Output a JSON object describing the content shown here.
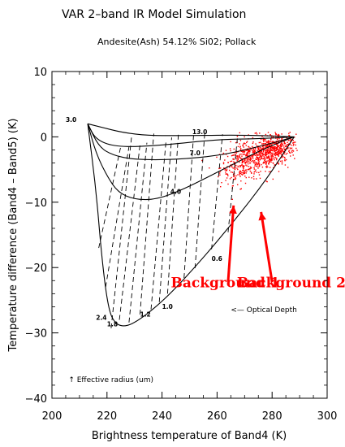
{
  "chart_data": {
    "type": "scatter",
    "title": "VAR 2–band IR Model Simulation",
    "subtitle": "Andesite(Ash) 54.12% Si02; Pollack",
    "xlabel": "Brightness temperature of Band4  (K)",
    "ylabel": "Temperature difference (Band4 – Band5)  (K)",
    "xlim": [
      200,
      300
    ],
    "ylim": [
      -40,
      10
    ],
    "xticks": [
      "200",
      "220",
      "240",
      "260",
      "280",
      "300"
    ],
    "yticks": [
      "10",
      "0",
      "−10",
      "−20",
      "−30",
      "−40"
    ],
    "grid": false,
    "effective_radius_curves": [
      {
        "label": "3.0",
        "points": [
          [
            213,
            2
          ],
          [
            216,
            -0.5
          ],
          [
            224,
            -1.6
          ],
          [
            240,
            -1.3
          ],
          [
            260,
            -0.4
          ],
          [
            275,
            -0.3
          ],
          [
            288,
            0
          ]
        ]
      },
      {
        "label": "7.0",
        "points": [
          [
            213,
            2
          ],
          [
            217,
            -1.5
          ],
          [
            222,
            -2.8
          ],
          [
            230,
            -3.5
          ],
          [
            245,
            -3.5
          ],
          [
            262,
            -2.8
          ],
          [
            278,
            -1.2
          ],
          [
            288,
            0
          ]
        ]
      },
      {
        "label": "4.0",
        "points": [
          [
            213,
            2
          ],
          [
            216,
            -2.5
          ],
          [
            220,
            -6.0
          ],
          [
            224,
            -8.5
          ],
          [
            230,
            -9.6
          ],
          [
            238,
            -9.6
          ],
          [
            248,
            -8.0
          ],
          [
            262,
            -5.0
          ],
          [
            277,
            -1.8
          ],
          [
            288,
            0
          ]
        ]
      },
      {
        "label": "13.0",
        "points": [
          [
            213,
            2
          ],
          [
            230,
            0.2
          ],
          [
            250,
            0.2
          ],
          [
            270,
            0.3
          ],
          [
            288,
            0
          ]
        ]
      },
      {
        "label": "2.4",
        "points": [
          [
            213,
            2
          ],
          [
            216,
            -8
          ],
          [
            218,
            -18
          ],
          [
            220,
            -25
          ],
          [
            222,
            -28.2
          ],
          [
            226,
            -29.2
          ],
          [
            232,
            -28
          ],
          [
            242,
            -24.5
          ],
          [
            254,
            -19
          ],
          [
            266,
            -13
          ],
          [
            278,
            -6.5
          ],
          [
            288,
            0
          ]
        ]
      }
    ],
    "optical_depth_lines": [
      {
        "label": "1.8",
        "points": [
          [
            221.5,
            -29.3
          ],
          [
            229,
            0.3
          ]
        ]
      },
      {
        "label": "1.2",
        "points": [
          [
            232,
            -27.2
          ],
          [
            237,
            0.5
          ]
        ]
      },
      {
        "label": "1.0",
        "points": [
          [
            242,
            -24
          ],
          [
            246,
            0.7
          ]
        ]
      },
      {
        "label": "0.6",
        "points": [
          [
            258,
            -17.2
          ],
          [
            262,
            0.4
          ]
        ]
      },
      {
        "points": [
          [
            217,
            -17
          ],
          [
            225,
            -1.5
          ]
        ]
      },
      {
        "points": [
          [
            219.5,
            -23
          ],
          [
            228,
            -1.5
          ]
        ]
      },
      {
        "points": [
          [
            224.5,
            -28
          ],
          [
            232,
            -1.2
          ]
        ]
      },
      {
        "points": [
          [
            228,
            -28.4
          ],
          [
            234.5,
            -0.9
          ]
        ]
      },
      {
        "points": [
          [
            236,
            -26.4
          ],
          [
            241.5,
            -0.4
          ]
        ]
      },
      {
        "points": [
          [
            239,
            -25.3
          ],
          [
            243.5,
            -0.1
          ]
        ]
      },
      {
        "points": [
          [
            248,
            -21.6
          ],
          [
            251.5,
            0.5
          ]
        ]
      },
      {
        "points": [
          [
            252,
            -20.1
          ],
          [
            255.5,
            0.5
          ]
        ]
      },
      {
        "points": [
          [
            264,
            -14.6
          ],
          [
            267.5,
            0.3
          ]
        ]
      }
    ],
    "background_clusters": [
      {
        "name": "Background 1",
        "center": [
          270,
          -3.5
        ],
        "spread": [
          9,
          3.2
        ],
        "count": 420
      },
      {
        "name": "Background 2",
        "center": [
          280,
          -2.0
        ],
        "spread": [
          8,
          2.2
        ],
        "count": 520
      }
    ],
    "annotations": [
      {
        "text": "Background 1",
        "x": 263,
        "y": -23,
        "color": "#ff0000"
      },
      {
        "text": "Background 2",
        "x": 287,
        "y": -23,
        "color": "#ff0000"
      },
      {
        "text": "<— Optical Depth",
        "x": 265,
        "y": -26.8
      },
      {
        "text": "↑ Effective radius (um)",
        "x": 206,
        "y": -37.5
      }
    ],
    "arrows": [
      {
        "from": [
          264,
          -22.2
        ],
        "to": [
          266,
          -10.5
        ],
        "color": "#ff0000"
      },
      {
        "from": [
          280,
          -22.2
        ],
        "to": [
          276,
          -11.5
        ],
        "color": "#ff0000"
      }
    ],
    "colors": {
      "scatter": "#ff0000",
      "lines": "#000000"
    }
  }
}
